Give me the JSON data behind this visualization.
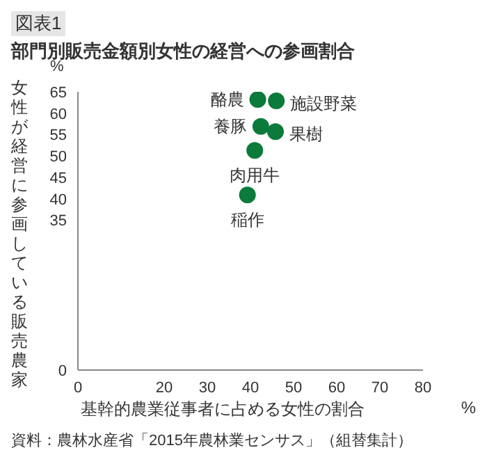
{
  "chart_data": {
    "type": "scatter",
    "title": "図表1",
    "subtitle": "部門別販売金額別女性の経営への参画割合",
    "xlabel": "基幹的農業従事者に占める女性の割合",
    "ylabel": "女性が経営に参画している販売農家",
    "x": [
      41.7,
      46,
      42.4,
      45.8,
      41,
      39.3
    ],
    "values": [
      63.2,
      62.9,
      56.9,
      55.7,
      51.3,
      40.9
    ],
    "value_labels": [
      "酪農",
      "施設野菜",
      "養豚",
      "果樹",
      "肉用牛",
      "稲作"
    ],
    "color": "#0b7a3a",
    "marker": "circle",
    "xlim": [
      0,
      80
    ],
    "xticks": [
      0,
      20,
      30,
      40,
      50,
      60,
      70,
      80
    ],
    "ylim": [
      0,
      65
    ],
    "yticks": [
      0,
      35,
      40,
      45,
      50,
      55,
      60,
      65
    ],
    "annotations": [
      "%",
      "%",
      "資料：農林水産省「2015年農林業センサス」（組替集計）"
    ]
  }
}
